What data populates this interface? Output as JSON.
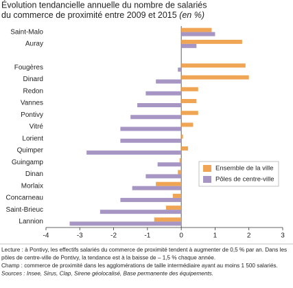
{
  "chart_data": {
    "type": "barh",
    "title": "Évolution tendancielle annuelle du nombre de salariés",
    "subtitle": "du commerce de proximité entre 2009 et 2015",
    "subtitle_unit": "(en %)",
    "categories": [
      "Saint-Malo",
      "Auray",
      null,
      "Fougères",
      "Dinard",
      "Redon",
      "Vannes",
      "Pontivy",
      "Vitré",
      "Lorient",
      "Quimper",
      "Guingamp",
      "Dinan",
      "Morlaix",
      "Concarneau",
      "Saint-Brieuc",
      "Lannion"
    ],
    "series": [
      {
        "name": "Ensemble de la ville",
        "color": "#f0a554",
        "values": [
          0.9,
          1.8,
          null,
          1.9,
          2.0,
          0.5,
          0.45,
          0.5,
          0.35,
          0.05,
          0.2,
          -0.05,
          -0.1,
          -0.75,
          -0.25,
          -0.45,
          -0.8
        ]
      },
      {
        "name": "Pôles de centre-ville",
        "color": "#a796c4",
        "values": [
          1.0,
          0.45,
          null,
          -0.1,
          -0.75,
          -1.05,
          -1.3,
          -1.5,
          -1.8,
          -1.8,
          -2.8,
          -0.7,
          -1.05,
          -1.45,
          -1.8,
          -2.4,
          -3.3
        ]
      }
    ],
    "xlim": [
      -4,
      3
    ],
    "xticks": [
      -4,
      -3,
      -2,
      -1,
      0,
      1,
      2,
      3
    ],
    "legend": "lower-right",
    "notes": [
      "Lecture : à Pontivy, les effectifs salariés du commerce de proximité tendent à augmenter de 0,5 % par an. Dans les",
      "pôles de centre-ville de Pontivy, la tendance est à la baisse de – 1,5 % chaque année.",
      "Champ : commerce de proximité dans les agglomérations de taille intermédiaire ayant au moins 1 500 salariés.",
      "Sources : Insee, Sirus, Clap, Sirene géolocalisé, Base permanente des équipements."
    ]
  }
}
